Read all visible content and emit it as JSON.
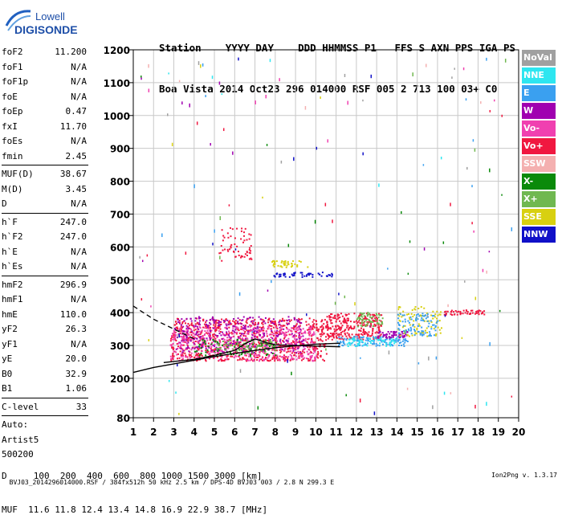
{
  "logo": {
    "line1": "Lowell",
    "line2": "DIGISONDE"
  },
  "header": {
    "row1": "Station    YYYY DAY    DDD HHMMSS P1   FFS S AXN PPS IGA PS",
    "row2": "Boa Vista 2014 Oct23 296 014000 RSF 005 2 713 100 03+ C0"
  },
  "params": [
    {
      "label": "foF2",
      "value": "11.200"
    },
    {
      "label": "foF1",
      "value": "N/A"
    },
    {
      "label": "foF1p",
      "value": "N/A"
    },
    {
      "label": "foE",
      "value": "N/A"
    },
    {
      "label": "foEp",
      "value": "0.47"
    },
    {
      "label": "fxI",
      "value": "11.70"
    },
    {
      "label": "foEs",
      "value": "N/A"
    },
    {
      "label": "fmin",
      "value": "2.45"
    },
    {
      "label": "MUF(D)",
      "value": "38.67",
      "sep": true
    },
    {
      "label": "M(D)",
      "value": "3.45"
    },
    {
      "label": "D",
      "value": "N/A"
    },
    {
      "label": "h`F",
      "value": "247.0",
      "sep": true
    },
    {
      "label": "h`F2",
      "value": "247.0"
    },
    {
      "label": "h`E",
      "value": "N/A"
    },
    {
      "label": "h`Es",
      "value": "N/A"
    },
    {
      "label": "hmF2",
      "value": "296.9",
      "sep": true
    },
    {
      "label": "hmF1",
      "value": "N/A"
    },
    {
      "label": "hmE",
      "value": "110.0"
    },
    {
      "label": "yF2",
      "value": "26.3"
    },
    {
      "label": "yF1",
      "value": "N/A"
    },
    {
      "label": "yE",
      "value": "20.0"
    },
    {
      "label": "B0",
      "value": "32.9"
    },
    {
      "label": "B1",
      "value": "1.06"
    },
    {
      "label": "C-level",
      "value": "33",
      "sep": true
    }
  ],
  "auto": {
    "line1": "Auto:",
    "line2": "Artist5",
    "line3": "500200"
  },
  "muf_table": {
    "row1": "D     100  200  400  600  800 1000 1500 3000 [km]",
    "row2": "MUF  11.6 11.8 12.4 13.4 14.8 16.9 22.9 38.7 [MHz]"
  },
  "footer": {
    "file": "BVJ03_2014296014000.RSF / 384fx512h 50 kHz 2.5 km / DPS-4D BVJ03 003 / 2.8 N 299.3 E",
    "version": "Ion2Png v. 1.3.17"
  },
  "legend": [
    {
      "label": "NoVal",
      "color": "#a0a0a0"
    },
    {
      "label": "NNE",
      "color": "#2ee6f0"
    },
    {
      "label": "E",
      "color": "#3aa0f0"
    },
    {
      "label": "W",
      "color": "#a000b0"
    },
    {
      "label": "Vo-",
      "color": "#f040b0"
    },
    {
      "label": "Vo+",
      "color": "#f01840"
    },
    {
      "label": "SSW",
      "color": "#f4b0b0"
    },
    {
      "label": "X-",
      "color": "#0a8a0a"
    },
    {
      "label": "X+",
      "color": "#70b850"
    },
    {
      "label": "SSE",
      "color": "#d8d010"
    },
    {
      "label": "NNW",
      "color": "#1010c8"
    }
  ],
  "chart_data": {
    "type": "scatter",
    "title": "",
    "xlabel": "",
    "ylabel": "",
    "x_unit": "MHz",
    "y_unit": "km",
    "xlim": [
      1,
      20
    ],
    "ylim": [
      80,
      1200
    ],
    "x_ticks": [
      1,
      2,
      3,
      4,
      5,
      6,
      7,
      8,
      9,
      10,
      11,
      12,
      13,
      14,
      15,
      16,
      17,
      18,
      19,
      20
    ],
    "y_ticks": [
      80,
      200,
      300,
      400,
      500,
      600,
      700,
      800,
      900,
      1000,
      1100,
      1200
    ],
    "grid": true,
    "clusters": [
      {
        "color": "#f01840",
        "x": [
          2.8,
          10.5
        ],
        "y": [
          255,
          385
        ],
        "density": 900
      },
      {
        "color": "#f040b0",
        "x": [
          2.8,
          10
        ],
        "y": [
          255,
          360
        ],
        "density": 500
      },
      {
        "color": "#a000b0",
        "x": [
          3,
          9.5
        ],
        "y": [
          280,
          390
        ],
        "density": 300
      },
      {
        "color": "#0a8a0a",
        "x": [
          4,
          8
        ],
        "y": [
          270,
          320
        ],
        "density": 80
      },
      {
        "color": "#70b850",
        "x": [
          5,
          8
        ],
        "y": [
          280,
          320
        ],
        "density": 60
      },
      {
        "color": "#f01840",
        "x": [
          10.5,
          13.2
        ],
        "y": [
          320,
          400
        ],
        "density": 300
      },
      {
        "color": "#70b850",
        "x": [
          12,
          13.3
        ],
        "y": [
          360,
          405
        ],
        "density": 60
      },
      {
        "color": "#3aa0f0",
        "x": [
          11,
          14.5
        ],
        "y": [
          300,
          330
        ],
        "density": 120
      },
      {
        "color": "#2ee6f0",
        "x": [
          11.5,
          14
        ],
        "y": [
          300,
          325
        ],
        "density": 60
      },
      {
        "color": "#a000b0",
        "x": [
          13,
          14.5
        ],
        "y": [
          325,
          345
        ],
        "density": 60
      },
      {
        "color": "#d8d010",
        "x": [
          14,
          16.2
        ],
        "y": [
          330,
          420
        ],
        "density": 90
      },
      {
        "color": "#3aa0f0",
        "x": [
          14,
          16
        ],
        "y": [
          330,
          400
        ],
        "density": 90
      },
      {
        "color": "#f01840",
        "x": [
          16.3,
          18.3
        ],
        "y": [
          395,
          410
        ],
        "density": 50
      },
      {
        "color": "#f01840",
        "x": [
          5.2,
          6.8
        ],
        "y": [
          560,
          660
        ],
        "density": 60
      },
      {
        "color": "#d8d010",
        "x": [
          7.8,
          9.6
        ],
        "y": [
          540,
          560
        ],
        "density": 40
      },
      {
        "color": "#1010c8",
        "x": [
          7.9,
          10.8
        ],
        "y": [
          510,
          525
        ],
        "density": 50
      }
    ],
    "traces": [
      {
        "name": "",
        "style": "solid",
        "x": [
          1,
          2,
          3,
          4,
          5,
          6,
          7,
          8,
          9,
          10,
          11.2
        ],
        "y": [
          218,
          233,
          244,
          255,
          266,
          276,
          285,
          293,
          299,
          304,
          307
        ]
      },
      {
        "name": "",
        "style": "solid",
        "x": [
          2.5,
          4,
          5,
          6,
          6.5,
          7,
          7.5,
          8,
          9,
          10,
          11.2
        ],
        "y": [
          248,
          258,
          270,
          285,
          305,
          320,
          310,
          302,
          300,
          298,
          296
        ]
      },
      {
        "name": "",
        "style": "dashed",
        "x": [
          1,
          2,
          3,
          4
        ],
        "y": [
          420,
          380,
          350,
          320
        ]
      }
    ]
  }
}
